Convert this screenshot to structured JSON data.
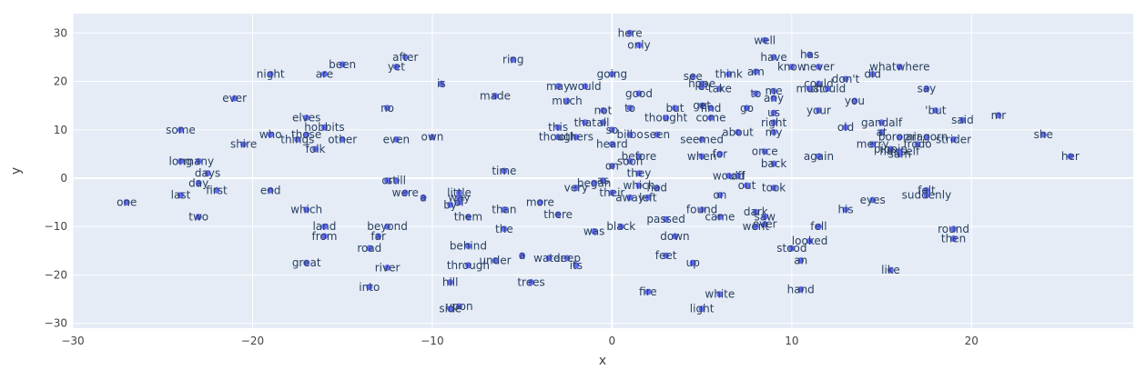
{
  "chart_data": {
    "type": "scatter",
    "xlabel": "x",
    "ylabel": "y",
    "xlim": [
      -30,
      29
    ],
    "ylim": [
      -31,
      34
    ],
    "xticks": [
      -30,
      -20,
      -10,
      0,
      10,
      20
    ],
    "yticks": [
      -30,
      -20,
      -10,
      0,
      10,
      20,
      30
    ],
    "xtick_labels": [
      "−30",
      "−20",
      "−10",
      "0",
      "10",
      "20"
    ],
    "ytick_labels": [
      "−30",
      "−20",
      "−10",
      "0",
      "10",
      "20",
      "30"
    ],
    "grid": true,
    "colors": {
      "plot_bg": "#e5ecf6",
      "grid": "#ffffff",
      "marker": "#636efa",
      "text": "#2a3f5f"
    },
    "points": [
      {
        "label": "here",
        "x": 1,
        "y": 30
      },
      {
        "label": "only",
        "x": 1.5,
        "y": 27.5
      },
      {
        "label": "well",
        "x": 8.5,
        "y": 28.5
      },
      {
        "label": "has",
        "x": 11,
        "y": 25.5
      },
      {
        "label": "have",
        "x": 9,
        "y": 25
      },
      {
        "label": "ring",
        "x": -5.5,
        "y": 24.5
      },
      {
        "label": "after",
        "x": -11.5,
        "y": 25
      },
      {
        "label": "been",
        "x": -15,
        "y": 23.5
      },
      {
        "label": "yet",
        "x": -12,
        "y": 23
      },
      {
        "label": "know",
        "x": 10,
        "y": 23
      },
      {
        "label": "never",
        "x": 11.5,
        "y": 23
      },
      {
        "label": "whatwhere",
        "x": 16,
        "y": 23
      },
      {
        "label": "night",
        "x": -19,
        "y": 21.5
      },
      {
        "label": "are",
        "x": -16,
        "y": 21.5
      },
      {
        "label": "going",
        "x": 0,
        "y": 21.5
      },
      {
        "label": "think",
        "x": 6.5,
        "y": 21.5
      },
      {
        "label": "am",
        "x": 8,
        "y": 22
      },
      {
        "label": "did",
        "x": 14.5,
        "y": 21.5
      },
      {
        "label": "see",
        "x": 4.5,
        "y": 21
      },
      {
        "label": "don't",
        "x": 13,
        "y": 20.5
      },
      {
        "label": "is",
        "x": -9.5,
        "y": 19.5
      },
      {
        "label": "hope",
        "x": 5,
        "y": 19.5
      },
      {
        "label": "could",
        "x": 11.5,
        "y": 19.5
      },
      {
        "label": "may",
        "x": -3,
        "y": 19
      },
      {
        "label": "would",
        "x": -1.5,
        "y": 19
      },
      {
        "label": "take",
        "x": 6,
        "y": 18.5
      },
      {
        "label": "let",
        "x": 5,
        "y": 19
      },
      {
        "label": "should",
        "x": 12,
        "y": 18.5
      },
      {
        "label": "say",
        "x": 17.5,
        "y": 18.5
      },
      {
        "label": "must",
        "x": 11,
        "y": 18.5
      },
      {
        "label": "ever",
        "x": -21,
        "y": 16.5
      },
      {
        "label": "made",
        "x": -6.5,
        "y": 17
      },
      {
        "label": "good",
        "x": 1.5,
        "y": 17.5
      },
      {
        "label": "to",
        "x": 8,
        "y": 17.5
      },
      {
        "label": "me",
        "x": 9,
        "y": 18
      },
      {
        "label": "much",
        "x": -2.5,
        "y": 16
      },
      {
        "label": "any",
        "x": 9,
        "y": 16.5
      },
      {
        "label": "you",
        "x": 13.5,
        "y": 16
      },
      {
        "label": "no",
        "x": -12.5,
        "y": 14.5
      },
      {
        "label": "not",
        "x": -0.5,
        "y": 14
      },
      {
        "label": "to",
        "x": 1,
        "y": 14.5
      },
      {
        "label": "but",
        "x": 3.5,
        "y": 14.5
      },
      {
        "label": "get",
        "x": 5,
        "y": 15
      },
      {
        "label": "find",
        "x": 5.5,
        "y": 14.5
      },
      {
        "label": "go",
        "x": 7.5,
        "y": 14.5
      },
      {
        "label": "your",
        "x": 11.5,
        "y": 14
      },
      {
        "label": "us",
        "x": 9,
        "y": 13.5
      },
      {
        "label": "'but",
        "x": 18,
        "y": 14
      },
      {
        "label": "mr",
        "x": 21.5,
        "y": 13
      },
      {
        "label": "said",
        "x": 19.5,
        "y": 12
      },
      {
        "label": "elves",
        "x": -17,
        "y": 12.5
      },
      {
        "label": "thought",
        "x": 3,
        "y": 12.5
      },
      {
        "label": "come",
        "x": 5.5,
        "y": 12.5
      },
      {
        "label": "right",
        "x": 9,
        "y": 11.5
      },
      {
        "label": "gandalf",
        "x": 15,
        "y": 11.5
      },
      {
        "label": "that",
        "x": -1.5,
        "y": 11.5
      },
      {
        "label": "all",
        "x": -0.5,
        "y": 11.5
      },
      {
        "label": "hobbits",
        "x": -16,
        "y": 10.5
      },
      {
        "label": "some",
        "x": -24,
        "y": 10
      },
      {
        "label": "this",
        "x": -3,
        "y": 10.5
      },
      {
        "label": "old",
        "x": 13,
        "y": 10.5
      },
      {
        "label": "so",
        "x": 0,
        "y": 10
      },
      {
        "label": "about",
        "x": 7,
        "y": 9.5
      },
      {
        "label": "my",
        "x": 9,
        "y": 9.5
      },
      {
        "label": "at",
        "x": 15,
        "y": 9.5
      },
      {
        "label": "who",
        "x": -19,
        "y": 9
      },
      {
        "label": "those",
        "x": -17,
        "y": 9
      },
      {
        "label": "bilbo",
        "x": 1,
        "y": 9
      },
      {
        "label": "seen",
        "x": 2.5,
        "y": 9
      },
      {
        "label": "boromir",
        "x": 16,
        "y": 8.5
      },
      {
        "label": "aragorn",
        "x": 17.5,
        "y": 8.5
      },
      {
        "label": "things",
        "x": -17.5,
        "y": 8
      },
      {
        "label": "other",
        "x": -15,
        "y": 8
      },
      {
        "label": "even",
        "x": -12,
        "y": 8
      },
      {
        "label": "own",
        "x": -10,
        "y": 8.5
      },
      {
        "label": "though",
        "x": -3,
        "y": 8.5
      },
      {
        "label": "others",
        "x": -2,
        "y": 8.5
      },
      {
        "label": "seemed",
        "x": 5,
        "y": 8
      },
      {
        "label": "merry",
        "x": 14.5,
        "y": 7
      },
      {
        "label": "frodo",
        "x": 17,
        "y": 7
      },
      {
        "label": "strider",
        "x": 19,
        "y": 8
      },
      {
        "label": "shire",
        "x": -20.5,
        "y": 7
      },
      {
        "label": "heard",
        "x": 0,
        "y": 7
      },
      {
        "label": "pippin",
        "x": 15.5,
        "y": 6
      },
      {
        "label": "folk",
        "x": -16.5,
        "y": 6
      },
      {
        "label": "once",
        "x": 8.5,
        "y": 5.5
      },
      {
        "label": "himself",
        "x": 16,
        "y": 5.5
      },
      {
        "label": "sam",
        "x": 16,
        "y": 5
      },
      {
        "label": "before",
        "x": 1.5,
        "y": 4.5
      },
      {
        "label": "when",
        "x": 5,
        "y": 4.5
      },
      {
        "label": "for",
        "x": 6,
        "y": 5
      },
      {
        "label": "again",
        "x": 11.5,
        "y": 4.5
      },
      {
        "label": "her",
        "x": 25.5,
        "y": 4.5
      },
      {
        "label": "she",
        "x": 24,
        "y": 9
      },
      {
        "label": "long",
        "x": -24,
        "y": 3.5
      },
      {
        "label": "many",
        "x": -23,
        "y": 3.5
      },
      {
        "label": "soon",
        "x": 1,
        "y": 3.5
      },
      {
        "label": "back",
        "x": 9,
        "y": 3
      },
      {
        "label": "on",
        "x": 0,
        "y": 2.5
      },
      {
        "label": "days",
        "x": -22.5,
        "y": 1
      },
      {
        "label": "time",
        "x": -6,
        "y": 1.5
      },
      {
        "label": "they",
        "x": 1.5,
        "y": 1
      },
      {
        "label": "would",
        "x": 6.5,
        "y": 0.5
      },
      {
        "label": "off",
        "x": 7,
        "y": 0.5
      },
      {
        "label": "day",
        "x": -23,
        "y": -1
      },
      {
        "label": "still",
        "x": -12,
        "y": -0.5
      },
      {
        "label": "or",
        "x": -12.5,
        "y": -0.5
      },
      {
        "label": "as",
        "x": -0.5,
        "y": -0.5
      },
      {
        "label": "began",
        "x": -1,
        "y": -1
      },
      {
        "label": "which",
        "x": 1.5,
        "y": -1.5
      },
      {
        "label": "had",
        "x": 2.5,
        "y": -2
      },
      {
        "label": "out",
        "x": 7.5,
        "y": -1.5
      },
      {
        "label": "took",
        "x": 9,
        "y": -2
      },
      {
        "label": "first",
        "x": -22,
        "y": -2.5
      },
      {
        "label": "end",
        "x": -19,
        "y": -2.5
      },
      {
        "label": "very",
        "x": -2,
        "y": -2
      },
      {
        "label": "their",
        "x": 0,
        "y": -3
      },
      {
        "label": "were",
        "x": -11.5,
        "y": -3
      },
      {
        "label": "felt",
        "x": 17.5,
        "y": -2.5
      },
      {
        "label": "last",
        "x": -24,
        "y": -3.5
      },
      {
        "label": "little",
        "x": -8.5,
        "y": -3
      },
      {
        "label": "on",
        "x": 6,
        "y": -3.5
      },
      {
        "label": "suddenly",
        "x": 17.5,
        "y": -3.5
      },
      {
        "label": "away",
        "x": 1,
        "y": -4
      },
      {
        "label": "left",
        "x": 2,
        "y": -4
      },
      {
        "label": "a",
        "x": -10.5,
        "y": -4
      },
      {
        "label": "way",
        "x": -8.5,
        "y": -4
      },
      {
        "label": "one",
        "x": -27,
        "y": -5
      },
      {
        "label": "by",
        "x": -9,
        "y": -5.5
      },
      {
        "label": "of",
        "x": -8.5,
        "y": -5
      },
      {
        "label": "more",
        "x": -4,
        "y": -5
      },
      {
        "label": "eyes",
        "x": 14.5,
        "y": -4.5
      },
      {
        "label": "which",
        "x": -17,
        "y": -6.5
      },
      {
        "label": "than",
        "x": -6,
        "y": -6.5
      },
      {
        "label": "found",
        "x": 5,
        "y": -6.5
      },
      {
        "label": "his",
        "x": 13,
        "y": -6.5
      },
      {
        "label": "dark",
        "x": 8,
        "y": -7
      },
      {
        "label": "two",
        "x": -23,
        "y": -8
      },
      {
        "label": "them",
        "x": -8,
        "y": -8
      },
      {
        "label": "there",
        "x": -3,
        "y": -7.5
      },
      {
        "label": "passed",
        "x": 3,
        "y": -8.5
      },
      {
        "label": "came",
        "x": 6,
        "y": -8
      },
      {
        "label": "saw",
        "x": 8.5,
        "y": -8
      },
      {
        "label": "land",
        "x": -16,
        "y": -10
      },
      {
        "label": "beyond",
        "x": -12.5,
        "y": -10
      },
      {
        "label": "the",
        "x": -6,
        "y": -10.5
      },
      {
        "label": "black",
        "x": 0.5,
        "y": -10
      },
      {
        "label": "over",
        "x": 8.5,
        "y": -9.5
      },
      {
        "label": "went",
        "x": 8,
        "y": -10
      },
      {
        "label": "fell",
        "x": 11.5,
        "y": -10
      },
      {
        "label": "round",
        "x": 19,
        "y": -10.5
      },
      {
        "label": "from",
        "x": -16,
        "y": -12
      },
      {
        "label": "far",
        "x": -13,
        "y": -12
      },
      {
        "label": "was",
        "x": -1,
        "y": -11
      },
      {
        "label": "down",
        "x": 3.5,
        "y": -12
      },
      {
        "label": "looked",
        "x": 11,
        "y": -13
      },
      {
        "label": "then",
        "x": 19,
        "y": -12.5
      },
      {
        "label": "behind",
        "x": -8,
        "y": -14
      },
      {
        "label": "road",
        "x": -13.5,
        "y": -14.5
      },
      {
        "label": "stood",
        "x": 10,
        "y": -14.5
      },
      {
        "label": "a",
        "x": -5,
        "y": -16
      },
      {
        "label": "water",
        "x": -3.5,
        "y": -16.5
      },
      {
        "label": "deep",
        "x": -2.5,
        "y": -16.5
      },
      {
        "label": "feet",
        "x": 3,
        "y": -16
      },
      {
        "label": "under",
        "x": -6.5,
        "y": -17
      },
      {
        "label": "its",
        "x": -2,
        "y": -18
      },
      {
        "label": "an",
        "x": 10.5,
        "y": -17
      },
      {
        "label": "up",
        "x": 4.5,
        "y": -17.5
      },
      {
        "label": "great",
        "x": -17,
        "y": -17.5
      },
      {
        "label": "through",
        "x": -8,
        "y": -18
      },
      {
        "label": "river",
        "x": -12.5,
        "y": -18.5
      },
      {
        "label": "like",
        "x": 15.5,
        "y": -19
      },
      {
        "label": "hill",
        "x": -9,
        "y": -21.5
      },
      {
        "label": "trees",
        "x": -4.5,
        "y": -21.5
      },
      {
        "label": "into",
        "x": -13.5,
        "y": -22.5
      },
      {
        "label": "hand",
        "x": 10.5,
        "y": -23
      },
      {
        "label": "fire",
        "x": 2,
        "y": -23.5
      },
      {
        "label": "white",
        "x": 6,
        "y": -24
      },
      {
        "label": "upon",
        "x": -8.5,
        "y": -26.5
      },
      {
        "label": "side",
        "x": -9,
        "y": -27
      },
      {
        "label": "light",
        "x": 5,
        "y": -27
      }
    ]
  }
}
